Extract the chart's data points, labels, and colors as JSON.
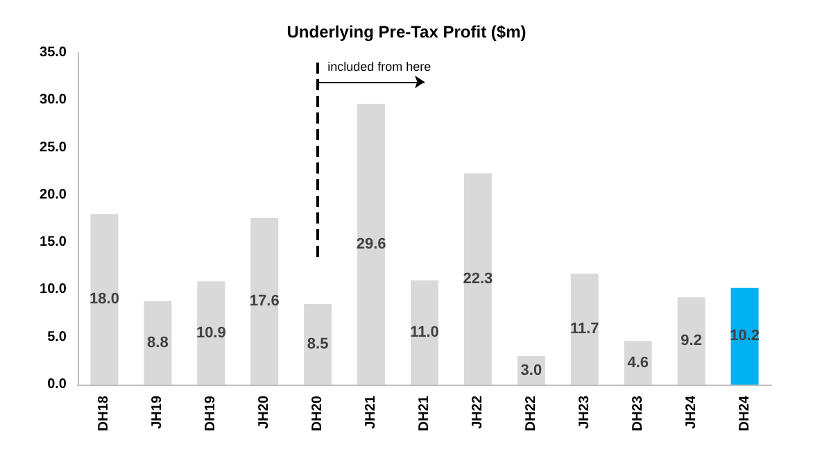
{
  "chart_data": {
    "type": "bar",
    "title": "Underlying Pre-Tax Profit ($m)",
    "categories": [
      "DH18",
      "JH19",
      "DH19",
      "JH20",
      "DH20",
      "JH21",
      "DH21",
      "JH22",
      "DH22",
      "JH23",
      "DH23",
      "JH24",
      "DH24"
    ],
    "values": [
      18.0,
      8.8,
      10.9,
      17.6,
      8.5,
      29.6,
      11.0,
      22.3,
      3.0,
      11.7,
      4.6,
      9.2,
      10.2
    ],
    "colors": [
      "#d9d9d9",
      "#d9d9d9",
      "#d9d9d9",
      "#d9d9d9",
      "#d9d9d9",
      "#d9d9d9",
      "#d9d9d9",
      "#d9d9d9",
      "#d9d9d9",
      "#d9d9d9",
      "#d9d9d9",
      "#d9d9d9",
      "#00b0f0"
    ],
    "value_labels": [
      "18.0",
      "8.8",
      "10.9",
      "17.6",
      "8.5",
      "29.6",
      "11.0",
      "22.3",
      "3.0",
      "11.7",
      "4.6",
      "9.2",
      "10.2"
    ],
    "ylim": [
      0,
      35
    ],
    "yticks": [
      {
        "value": 0,
        "label": "0.0"
      },
      {
        "value": 5,
        "label": "5.0"
      },
      {
        "value": 10,
        "label": "10.0"
      },
      {
        "value": 15,
        "label": "15.0"
      },
      {
        "value": 20,
        "label": "20.0"
      },
      {
        "value": 25,
        "label": "25.0"
      },
      {
        "value": 30,
        "label": "30.0"
      },
      {
        "value": 35,
        "label": "35.0"
      }
    ],
    "ref_lines": [
      {
        "axis": "x",
        "value": "DH20",
        "line_style": "dashed",
        "color": "#000000"
      }
    ],
    "annotations": [
      {
        "text": "included from here",
        "x": "DH20",
        "y": 33.5
      }
    ],
    "grid": false
  }
}
